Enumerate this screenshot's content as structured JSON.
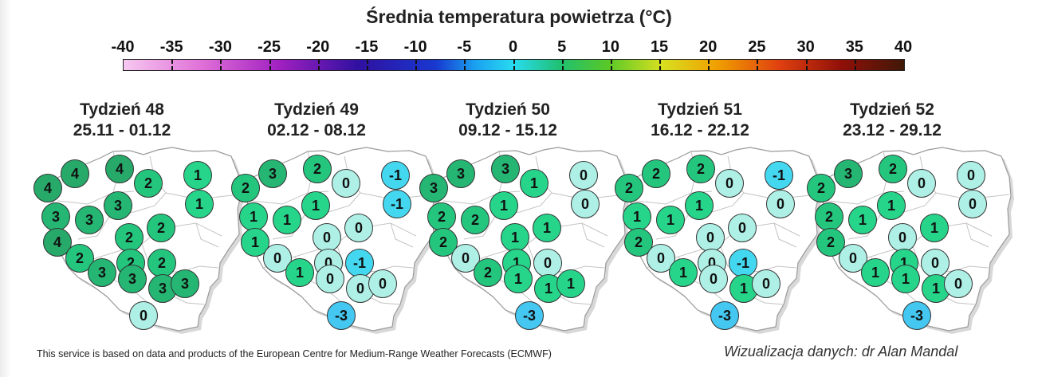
{
  "title": "Średnia temperatura powietrza (°C)",
  "scale": {
    "ticks": [
      "-40",
      "-35",
      "-30",
      "-25",
      "-20",
      "-15",
      "-10",
      "-5",
      "0",
      "5",
      "10",
      "15",
      "20",
      "25",
      "30",
      "35",
      "40"
    ],
    "colors": {
      "-3": "#44c8f2",
      "-1": "#44d8f0",
      "0": "#aef0e6",
      "1": "#26d48a",
      "2": "#24c67e",
      "3": "#24b672",
      "4": "#27a96a"
    }
  },
  "panels": [
    {
      "week": "Tydzień 48",
      "dates": "25.11 - 01.12",
      "values": [
        4,
        4,
        4,
        1,
        2,
        1,
        3,
        3,
        3,
        2,
        2,
        2,
        4,
        2,
        2,
        3,
        3,
        3,
        3,
        0
      ]
    },
    {
      "week": "Tydzień 49",
      "dates": "02.12 - 08.12",
      "values": [
        2,
        3,
        2,
        -1,
        0,
        -1,
        1,
        1,
        1,
        0,
        0,
        0,
        1,
        0,
        -1,
        1,
        0,
        0,
        0,
        -3
      ]
    },
    {
      "week": "Tydzień 50",
      "dates": "09.12 - 15.12",
      "values": [
        3,
        3,
        3,
        0,
        1,
        0,
        2,
        2,
        1,
        1,
        1,
        1,
        2,
        0,
        0,
        2,
        1,
        1,
        1,
        -3
      ]
    },
    {
      "week": "Tydzień 51",
      "dates": "16.12 - 22.12",
      "values": [
        2,
        2,
        2,
        -1,
        0,
        0,
        1,
        1,
        1,
        0,
        0,
        0,
        2,
        0,
        -1,
        1,
        0,
        1,
        0,
        -3
      ]
    },
    {
      "week": "Tydzień 52",
      "dates": "23.12 - 29.12",
      "values": [
        2,
        3,
        2,
        0,
        0,
        0,
        2,
        1,
        1,
        0,
        1,
        1,
        2,
        0,
        0,
        1,
        1,
        1,
        0,
        -3
      ]
    }
  ],
  "footer": {
    "source": "This service is based on data and products of the European Centre for Medium-Range Weather Forecasts (ECMWF)",
    "credit": "Wizualizacja danych: dr Alan Mandal"
  }
}
